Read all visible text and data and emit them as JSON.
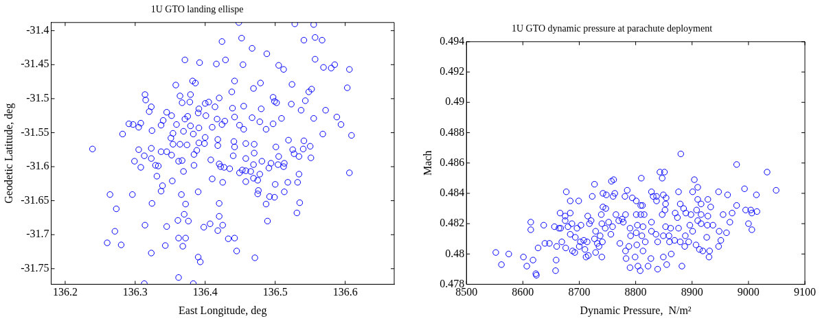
{
  "chart_data": [
    {
      "type": "scatter",
      "title": "1U GTO landing ellispe",
      "xlabel": "East Longitude, deg",
      "ylabel": "Geodetic Latitude, deg",
      "color": "#0000ff",
      "marker": "circle",
      "legend": false,
      "xlim": [
        136.18,
        136.67
      ],
      "xticks": [
        136.2,
        136.3,
        136.4,
        136.5,
        136.6
      ],
      "ylim": [
        -31.773,
        -31.388
      ],
      "yticks": [
        -31.75,
        -31.7,
        -31.65,
        -31.6,
        -31.55,
        -31.5,
        -31.45,
        -31.4
      ],
      "x": [
        136.448,
        136.424,
        136.452,
        136.467,
        136.371,
        136.392,
        136.416,
        136.429,
        136.454,
        136.442,
        136.382,
        136.386,
        136.358,
        136.469,
        136.438,
        136.314,
        136.315,
        136.364,
        136.379,
        136.378,
        136.367,
        136.42,
        136.323,
        136.32,
        136.4,
        136.405,
        136.414,
        136.439,
        136.455,
        136.345,
        136.352,
        136.34,
        136.337,
        136.291,
        136.297,
        136.308,
        136.305,
        136.324,
        136.282,
        136.239,
        136.359,
        136.371,
        136.375,
        136.379,
        136.39,
        136.391,
        136.401,
        136.41,
        136.417,
        136.428,
        136.424,
        136.442,
        136.449,
        136.455,
        136.467,
        136.478,
        136.479,
        136.48,
        136.354,
        136.351,
        136.369,
        136.383,
        136.391,
        136.4,
        136.354,
        136.364,
        136.374,
        136.391,
        136.399,
        136.418,
        136.418,
        136.441,
        136.442,
        136.458,
        136.47,
        136.305,
        136.323,
        136.313,
        136.337,
        136.345,
        136.352,
        136.384,
        136.388,
        136.408,
        136.44,
        136.458,
        136.47,
        136.469,
        136.481,
        136.299,
        136.323,
        136.308,
        136.329,
        136.333,
        136.362,
        136.367,
        136.384,
        136.42,
        136.422,
        136.427,
        136.435,
        136.449,
        136.453,
        136.458,
        136.465,
        136.478,
        136.469,
        136.475,
        136.458,
        136.41,
        136.425,
        136.369,
        136.353,
        136.331,
        136.339,
        136.337,
        136.366,
        136.39,
        136.476,
        136.475,
        136.264,
        136.296,
        136.273,
        136.324,
        136.372,
        136.42,
        136.37,
        136.376,
        136.42,
        136.361,
        136.314,
        136.345,
        136.398,
        136.407,
        136.418,
        136.425,
        136.271,
        136.362,
        136.372,
        136.433,
        136.442,
        136.26,
        136.28,
        136.343,
        136.368,
        136.445,
        136.323,
        136.39,
        136.393,
        136.471,
        136.362,
        136.313,
        136.383,
        136.528,
        136.555,
        136.541,
        136.557,
        136.567,
        136.488,
        136.557,
        136.505,
        136.512,
        136.569,
        136.58,
        136.585,
        136.606,
        136.524,
        136.603,
        136.552,
        136.548,
        136.543,
        136.497,
        136.499,
        136.502,
        136.523,
        136.537,
        136.572,
        136.555,
        136.588,
        136.594,
        136.509,
        136.497,
        136.487,
        136.568,
        136.609,
        136.519,
        136.541,
        136.55,
        136.501,
        136.525,
        136.527,
        136.534,
        136.54,
        136.551,
        136.505,
        136.494,
        136.504,
        136.513,
        136.512,
        136.491,
        136.606,
        136.534,
        136.532,
        136.518,
        136.5,
        136.513,
        136.499,
        136.492,
        136.487,
        136.535,
        136.531,
        136.489
      ],
      "values": [
        -31.388,
        -31.416,
        -31.411,
        -31.426,
        -31.443,
        -31.447,
        -31.449,
        -31.443,
        -31.45,
        -31.474,
        -31.474,
        -31.477,
        -31.48,
        -31.485,
        -31.49,
        -31.494,
        -31.502,
        -31.496,
        -31.494,
        -31.505,
        -31.506,
        -31.499,
        -31.512,
        -31.519,
        -31.507,
        -31.505,
        -31.512,
        -31.514,
        -31.511,
        -31.52,
        -31.525,
        -31.532,
        -31.539,
        -31.537,
        -31.538,
        -31.536,
        -31.542,
        -31.547,
        -31.552,
        -31.574,
        -31.538,
        -31.53,
        -31.526,
        -31.54,
        -31.521,
        -31.515,
        -31.525,
        -31.542,
        -31.53,
        -31.533,
        -31.538,
        -31.527,
        -31.539,
        -31.545,
        -31.528,
        -31.534,
        -31.477,
        -31.515,
        -31.551,
        -31.558,
        -31.548,
        -31.552,
        -31.543,
        -31.557,
        -31.567,
        -31.567,
        -31.568,
        -31.565,
        -31.566,
        -31.56,
        -31.569,
        -31.563,
        -31.571,
        -31.566,
        -31.567,
        -31.575,
        -31.573,
        -31.584,
        -31.578,
        -31.578,
        -31.583,
        -31.582,
        -31.576,
        -31.59,
        -31.584,
        -31.588,
        -31.58,
        -31.597,
        -31.592,
        -31.592,
        -31.588,
        -31.601,
        -31.598,
        -31.599,
        -31.592,
        -31.591,
        -31.598,
        -31.596,
        -31.6,
        -31.601,
        -31.603,
        -31.609,
        -31.605,
        -31.606,
        -31.607,
        -31.611,
        -31.617,
        -31.62,
        -31.622,
        -31.618,
        -31.623,
        -31.607,
        -31.621,
        -31.614,
        -31.628,
        -31.636,
        -31.641,
        -31.637,
        -31.635,
        -31.64,
        -31.641,
        -31.641,
        -31.662,
        -31.654,
        -31.655,
        -31.654,
        -31.67,
        -31.68,
        -31.673,
        -31.679,
        -31.686,
        -31.688,
        -31.689,
        -31.684,
        -31.694,
        -31.686,
        -31.695,
        -31.705,
        -31.705,
        -31.706,
        -31.705,
        -31.712,
        -31.715,
        -31.716,
        -31.717,
        -31.724,
        -31.727,
        -31.733,
        -31.74,
        -31.734,
        -31.763,
        -31.772,
        -31.772,
        -31.39,
        -31.391,
        -31.414,
        -31.41,
        -31.414,
        -31.434,
        -31.442,
        -31.451,
        -31.457,
        -31.454,
        -31.455,
        -31.45,
        -31.457,
        -31.479,
        -31.484,
        -31.486,
        -31.49,
        -31.503,
        -31.498,
        -31.504,
        -31.506,
        -31.508,
        -31.517,
        -31.517,
        -31.529,
        -31.527,
        -31.538,
        -31.529,
        -31.537,
        -31.545,
        -31.552,
        -31.554,
        -31.561,
        -31.562,
        -31.57,
        -31.571,
        -31.575,
        -31.581,
        -31.585,
        -31.574,
        -31.587,
        -31.585,
        -31.595,
        -31.597,
        -31.595,
        -31.6,
        -31.602,
        -31.609,
        -31.611,
        -31.623,
        -31.623,
        -31.626,
        -31.637,
        -31.645,
        -31.644,
        -31.655,
        -31.653,
        -31.668,
        -31.68
      ]
    },
    {
      "type": "scatter",
      "title": "1U GTO dynamic pressure at parachute deployment",
      "xlabel": "Dynamic Pressure,  N/m²",
      "ylabel": "Mach",
      "color": "#0000ff",
      "marker": "circle",
      "legend": false,
      "xlim": [
        8500,
        9100
      ],
      "xticks": [
        8500,
        8600,
        8700,
        8800,
        8900,
        9000,
        9100
      ],
      "ylim": [
        0.478,
        0.494
      ],
      "yticks": [
        0.478,
        0.48,
        0.482,
        0.484,
        0.486,
        0.488,
        0.49,
        0.492,
        0.494
      ],
      "x": [
        8552,
        8562,
        8575,
        8601,
        8607,
        8614,
        8614,
        8618,
        8623,
        8624,
        8627,
        8637,
        8639,
        8647,
        8656,
        8660,
        8659,
        8658,
        8664,
        8666,
        8667,
        8669,
        8675,
        8675,
        8676,
        8677,
        8680,
        8684,
        8684,
        8684,
        8687,
        8688,
        8692,
        8693,
        8696,
        8699,
        8700,
        8702,
        8703,
        8708,
        8710,
        8712,
        8714,
        8715,
        8716,
        8718,
        8721,
        8723,
        8727,
        8727,
        8729,
        8729,
        8732,
        8735,
        8737,
        8739,
        8740,
        8741,
        8740,
        8742,
        8742,
        8746,
        8748,
        8747,
        8757,
        8761,
        8760,
        8763,
        8752,
        8759,
        8756,
        8765,
        8770,
        8776,
        8778,
        8782,
        8785,
        8781,
        8790,
        8791,
        8772,
        8782,
        8783,
        8788,
        8790,
        8799,
        8794,
        8801,
        8809,
        8812,
        8810,
        8801,
        8809,
        8815,
        8803,
        8813,
        8801,
        8811,
        8802,
        8817,
        8813,
        8804,
        8808,
        8822,
        8828,
        8831,
        8837,
        8837,
        8828,
        8828,
        8836,
        8839,
        8827,
        8839,
        8843,
        8851,
        8847,
        8849,
        8854,
        8853,
        8852,
        8847,
        8853,
        8849,
        8862,
        8859,
        8860,
        8849,
        8855,
        8863,
        8870,
        8876,
        8879,
        8874,
        8876,
        8869,
        8879,
        8888,
        8887,
        8880,
        8882,
        8885,
        8889,
        8898,
        8896,
        8901,
        8894,
        8904,
        8910,
        8901,
        8910,
        8916,
        8908,
        8916,
        8910,
        8916,
        8907,
        8913,
        8919,
        8926,
        8927,
        8928,
        8928,
        8933,
        8931,
        8930,
        8937,
        8947,
        8948,
        8947,
        8951,
        8955,
        8961,
        8963,
        8967,
        8971,
        8979,
        8979,
        8993,
        8995,
        9000,
        9004,
        9006,
        9006,
        9014,
        9015,
        9033,
        9049
      ],
      "values": [
        0.4801,
        0.4793,
        0.48,
        0.4798,
        0.4792,
        0.4821,
        0.4816,
        0.4796,
        0.4787,
        0.4786,
        0.4804,
        0.4819,
        0.4807,
        0.4807,
        0.4818,
        0.4805,
        0.4796,
        0.4789,
        0.4817,
        0.4827,
        0.4817,
        0.4808,
        0.4825,
        0.4822,
        0.4804,
        0.4841,
        0.4818,
        0.4835,
        0.4827,
        0.4813,
        0.482,
        0.4802,
        0.4801,
        0.4811,
        0.4817,
        0.4835,
        0.4805,
        0.4808,
        0.4819,
        0.4809,
        0.4803,
        0.4798,
        0.4808,
        0.4825,
        0.4799,
        0.482,
        0.4822,
        0.4838,
        0.4846,
        0.481,
        0.4815,
        0.4801,
        0.4807,
        0.4805,
        0.4812,
        0.4826,
        0.482,
        0.4808,
        0.4798,
        0.4831,
        0.484,
        0.4817,
        0.4839,
        0.483,
        0.4848,
        0.4849,
        0.4838,
        0.484,
        0.4821,
        0.4818,
        0.4813,
        0.4826,
        0.4822,
        0.4823,
        0.4821,
        0.4826,
        0.4842,
        0.4838,
        0.4817,
        0.4812,
        0.4807,
        0.4802,
        0.4797,
        0.4805,
        0.4791,
        0.4798,
        0.4837,
        0.4835,
        0.4832,
        0.4832,
        0.485,
        0.4826,
        0.4826,
        0.4826,
        0.4819,
        0.4818,
        0.4814,
        0.4812,
        0.4806,
        0.4808,
        0.4802,
        0.4792,
        0.4789,
        0.4792,
        0.4841,
        0.4838,
        0.4835,
        0.4838,
        0.4821,
        0.4815,
        0.4813,
        0.4808,
        0.4797,
        0.479,
        0.4854,
        0.4854,
        0.485,
        0.4839,
        0.4837,
        0.4833,
        0.4829,
        0.4826,
        0.4818,
        0.4812,
        0.4817,
        0.4812,
        0.4808,
        0.4798,
        0.4793,
        0.48,
        0.4827,
        0.4841,
        0.4833,
        0.4824,
        0.4817,
        0.4809,
        0.4808,
        0.4812,
        0.4805,
        0.4866,
        0.4792,
        0.483,
        0.4827,
        0.4826,
        0.4819,
        0.4815,
        0.4808,
        0.4849,
        0.4844,
        0.4841,
        0.4836,
        0.4833,
        0.4829,
        0.4826,
        0.4822,
        0.482,
        0.4806,
        0.4803,
        0.4802,
        0.4811,
        0.4819,
        0.4825,
        0.4836,
        0.4831,
        0.4802,
        0.4798,
        0.4819,
        0.4841,
        0.4815,
        0.4805,
        0.4809,
        0.4826,
        0.4814,
        0.4839,
        0.4821,
        0.4827,
        0.4859,
        0.4832,
        0.4843,
        0.4829,
        0.482,
        0.4829,
        0.4827,
        0.4816,
        0.4839,
        0.4828,
        0.4854,
        0.4842
      ]
    }
  ]
}
